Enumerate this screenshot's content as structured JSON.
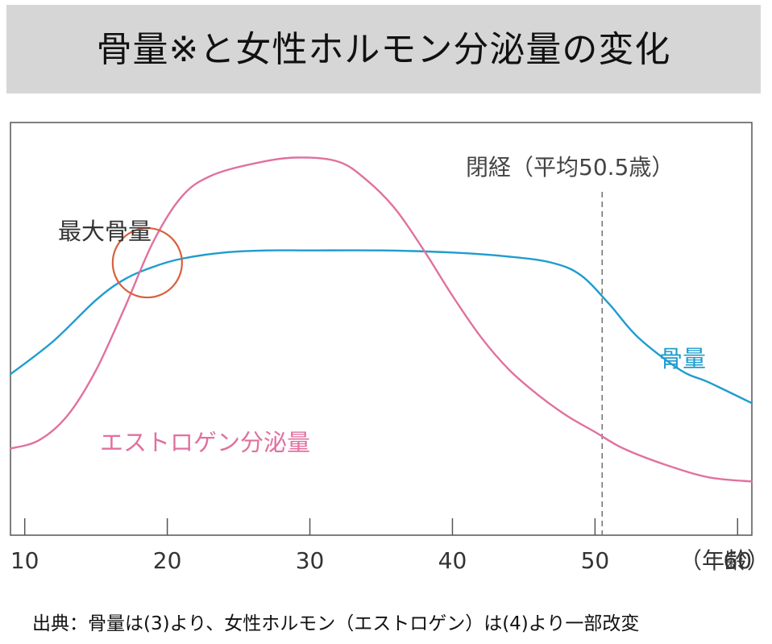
{
  "title": "骨量※と女性ホルモン分泌量の変化",
  "source_note": "出典：骨量は(3)より、女性ホルモン（エストロゲン）は(4)より一部改変",
  "annotations": {
    "menopause": "閉経（平均50.5歳）",
    "peak_bone_mass": "最大骨量",
    "bone_label": "骨量",
    "estrogen_label": "エストロゲン分泌量"
  },
  "chart_data": {
    "type": "line",
    "xlabel": "",
    "x_unit_label": "（年齢）",
    "xlim": [
      9,
      61
    ],
    "x_ticks": [
      10,
      20,
      30,
      40,
      50,
      60
    ],
    "ylim": [
      0,
      100
    ],
    "grid": false,
    "series": [
      {
        "name": "骨量",
        "color": "#1f9ccf",
        "x": [
          9,
          12,
          15,
          17,
          19,
          21,
          24,
          27,
          30,
          35,
          40,
          44,
          47,
          49,
          51,
          53,
          56,
          58,
          61
        ],
        "y": [
          39,
          47,
          57,
          62,
          65,
          67,
          68.5,
          69,
          69,
          69,
          68.5,
          67.5,
          66,
          63,
          56,
          48,
          40,
          37,
          32
        ]
      },
      {
        "name": "エストロゲン分泌量",
        "color": "#e0719f",
        "x": [
          9,
          11,
          13,
          15,
          17,
          19,
          21,
          23,
          26,
          29,
          32,
          34,
          36,
          38,
          40,
          42,
          44,
          46,
          48,
          50,
          52,
          55,
          58,
          61
        ],
        "y": [
          21,
          23,
          29,
          40,
          55,
          71,
          82,
          87,
          90,
          91.5,
          90.5,
          86,
          79,
          69,
          58,
          48,
          40,
          34,
          29,
          25,
          21,
          17,
          14,
          13
        ]
      }
    ],
    "vertical_lines": [
      {
        "x": 50.5,
        "style": "dashed",
        "color": "#777777"
      }
    ],
    "highlight_circle": {
      "x": 18.6,
      "y": 66,
      "color": "#d9603e"
    }
  }
}
